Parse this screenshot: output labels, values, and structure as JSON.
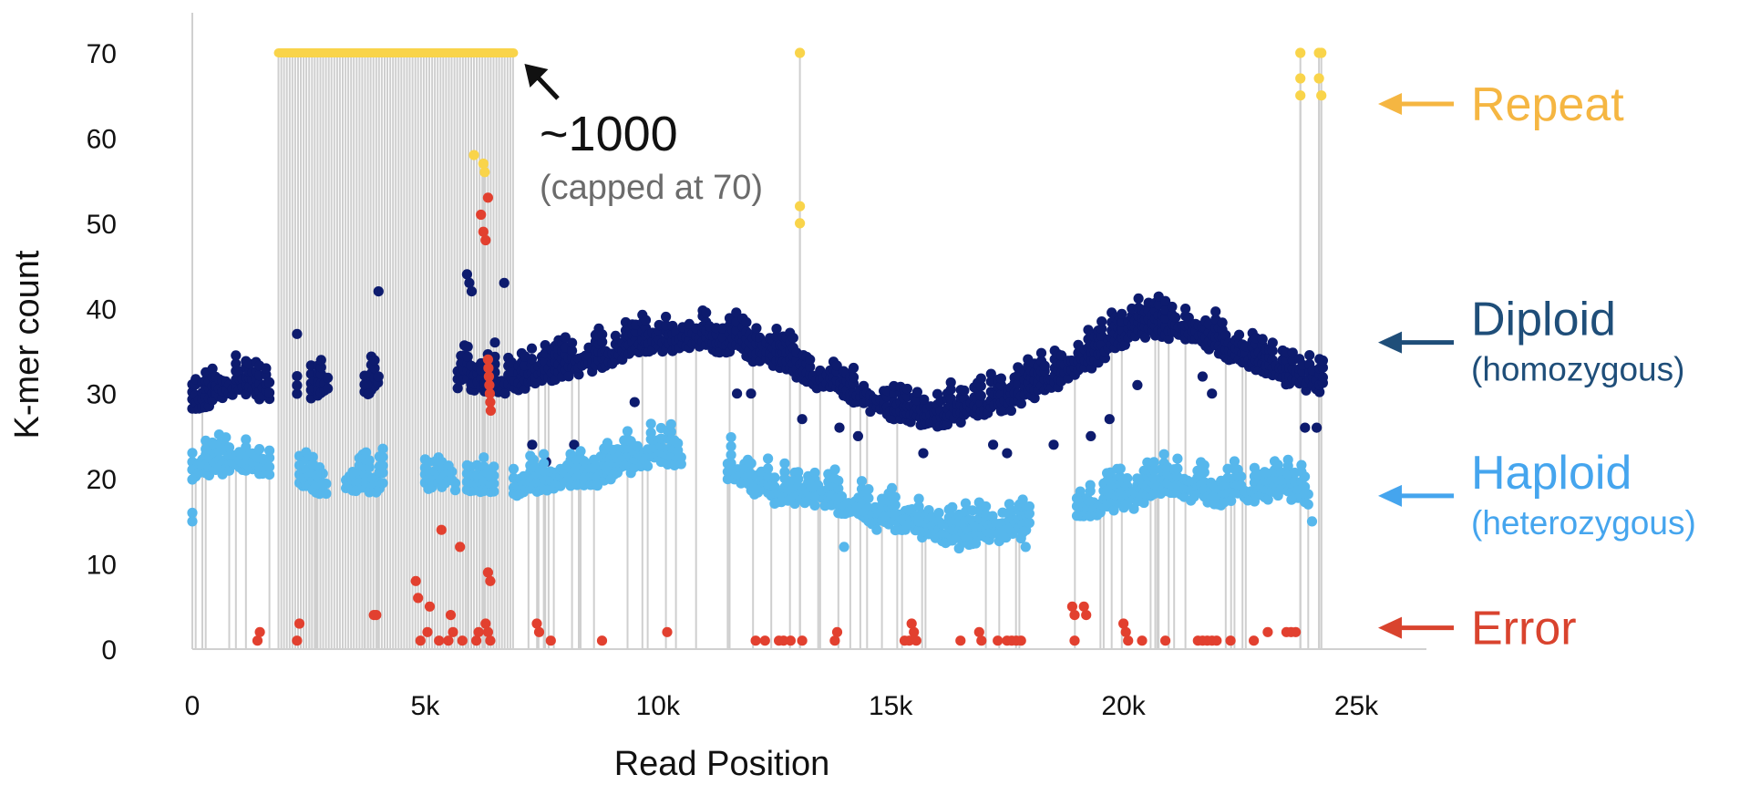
{
  "chart_data": {
    "type": "scatter",
    "title": "",
    "xlabel": "Read Position",
    "ylabel": "K-mer count",
    "xlim": [
      0,
      25000
    ],
    "ylim": [
      0,
      70
    ],
    "x_ticks": [
      0,
      5000,
      10000,
      15000,
      20000,
      25000
    ],
    "x_tick_labels": [
      "0",
      "5k",
      "10k",
      "15k",
      "20k",
      "25k"
    ],
    "y_ticks": [
      0,
      10,
      20,
      30,
      40,
      50,
      60,
      70
    ],
    "y_tick_labels": [
      "0",
      "10",
      "20",
      "30",
      "40",
      "50",
      "60",
      "70"
    ],
    "grid": false,
    "cap_value": 70,
    "colors": {
      "repeat": "#F9D44A",
      "diploid": "#0D1B6E",
      "haploid": "#56B7EC",
      "error": "#E2402F",
      "connector": "#CFCFCF",
      "axis": "#D0D0D0"
    },
    "annotation": {
      "main": "~1000",
      "sub": "(capped at 70)",
      "target": [
        6900,
        70
      ]
    },
    "legend": [
      {
        "key": "repeat",
        "label": "Repeat",
        "sublabel": "",
        "y": 64,
        "label_color": "#F5B642",
        "arrow_color": "#F5B642"
      },
      {
        "key": "diploid",
        "label": "Diploid",
        "sublabel": "(homozygous)",
        "y": 36,
        "label_color": "#1F4E79",
        "arrow_color": "#1F4E79"
      },
      {
        "key": "haploid",
        "label": "Haploid",
        "sublabel": "(heterozygous)",
        "y": 18,
        "label_color": "#45A5EE",
        "arrow_color": "#45A5EE"
      },
      {
        "key": "error",
        "label": "Error",
        "sublabel": "",
        "y": 2.5,
        "label_color": "#D9432E",
        "arrow_color": "#D9432E"
      }
    ],
    "series": [
      {
        "name": "Repeat",
        "key": "repeat",
        "segments": [
          {
            "x_start": 1850,
            "x_end": 6900,
            "y": 70
          }
        ],
        "points": [
          [
            6050,
            58
          ],
          [
            6250,
            57
          ],
          [
            6280,
            56
          ],
          [
            13050,
            70
          ],
          [
            13050,
            52
          ],
          [
            13050,
            50
          ],
          [
            23800,
            70
          ],
          [
            23800,
            67
          ],
          [
            23800,
            65
          ],
          [
            24200,
            70
          ],
          [
            24250,
            70
          ],
          [
            24200,
            67
          ],
          [
            24250,
            65
          ]
        ]
      },
      {
        "name": "Diploid",
        "key": "diploid",
        "base_curve": [
          [
            0,
            30
          ],
          [
            500,
            31
          ],
          [
            1000,
            32
          ],
          [
            1700,
            31
          ],
          [
            5000,
            33
          ],
          [
            6800,
            32
          ],
          [
            8000,
            34
          ],
          [
            10000,
            37
          ],
          [
            11500,
            37
          ],
          [
            13000,
            34
          ],
          [
            15000,
            29
          ],
          [
            16000,
            28
          ],
          [
            17500,
            30
          ],
          [
            19000,
            34
          ],
          [
            20500,
            39
          ],
          [
            21500,
            38
          ],
          [
            23000,
            34
          ],
          [
            24300,
            32
          ]
        ],
        "ranges": [
          [
            0,
            1700
          ],
          [
            2250,
            2300
          ],
          [
            2550,
            2950
          ],
          [
            3700,
            4050
          ],
          [
            5700,
            6500
          ],
          [
            6500,
            24300
          ]
        ],
        "outliers": [
          [
            2250,
            37
          ],
          [
            3750,
            31
          ],
          [
            3800,
            30
          ],
          [
            4000,
            42
          ],
          [
            4000,
            32
          ],
          [
            5900,
            44
          ],
          [
            5950,
            43
          ],
          [
            6000,
            42
          ],
          [
            6700,
            43
          ],
          [
            6500,
            36
          ],
          [
            7300,
            24
          ],
          [
            7400,
            20
          ],
          [
            7600,
            22
          ],
          [
            8200,
            24
          ],
          [
            9500,
            29
          ],
          [
            11700,
            30
          ],
          [
            12000,
            30
          ],
          [
            13100,
            27
          ],
          [
            13900,
            26
          ],
          [
            14300,
            25
          ],
          [
            15700,
            23
          ],
          [
            17200,
            24
          ],
          [
            17500,
            23
          ],
          [
            18500,
            24
          ],
          [
            19300,
            25
          ],
          [
            19700,
            27
          ],
          [
            20300,
            31
          ],
          [
            21700,
            32
          ],
          [
            21900,
            30
          ],
          [
            23900,
            26
          ],
          [
            24150,
            26
          ]
        ]
      },
      {
        "name": "Haploid",
        "key": "haploid",
        "base_curve": [
          [
            0,
            22
          ],
          [
            1000,
            23
          ],
          [
            1700,
            22
          ],
          [
            3000,
            20
          ],
          [
            5000,
            21
          ],
          [
            7000,
            20
          ],
          [
            8500,
            21
          ],
          [
            10000,
            24
          ],
          [
            11500,
            22
          ],
          [
            12500,
            19
          ],
          [
            13500,
            19
          ],
          [
            15000,
            16
          ],
          [
            16500,
            14
          ],
          [
            17500,
            15
          ],
          [
            18500,
            17
          ],
          [
            19800,
            18
          ],
          [
            21000,
            20
          ],
          [
            22000,
            19
          ],
          [
            23500,
            20
          ],
          [
            24000,
            19
          ]
        ],
        "ranges": [
          [
            0,
            1700
          ],
          [
            2300,
            2900
          ],
          [
            3300,
            4100
          ],
          [
            5000,
            5700
          ],
          [
            5900,
            6500
          ],
          [
            6900,
            10500
          ],
          [
            11500,
            18000
          ],
          [
            19000,
            24000
          ]
        ],
        "outliers": [
          [
            0,
            16
          ],
          [
            0,
            15
          ],
          [
            14000,
            12
          ],
          [
            14700,
            14
          ],
          [
            15600,
            15
          ],
          [
            17800,
            13
          ],
          [
            17900,
            12
          ],
          [
            24050,
            15
          ]
        ]
      },
      {
        "name": "Error",
        "key": "error",
        "points": [
          [
            1400,
            1
          ],
          [
            1450,
            2
          ],
          [
            2250,
            1
          ],
          [
            2300,
            3
          ],
          [
            3900,
            4
          ],
          [
            3950,
            4
          ],
          [
            4800,
            8
          ],
          [
            4850,
            6
          ],
          [
            4900,
            1
          ],
          [
            5050,
            2
          ],
          [
            5100,
            5
          ],
          [
            5300,
            1
          ],
          [
            5350,
            14
          ],
          [
            5500,
            1
          ],
          [
            5550,
            4
          ],
          [
            5600,
            2
          ],
          [
            5750,
            12
          ],
          [
            5800,
            1
          ],
          [
            6100,
            1
          ],
          [
            6150,
            2
          ],
          [
            6200,
            51
          ],
          [
            6250,
            49
          ],
          [
            6300,
            48
          ],
          [
            6350,
            53
          ],
          [
            6300,
            3
          ],
          [
            6350,
            2
          ],
          [
            6350,
            9
          ],
          [
            6400,
            8
          ],
          [
            6400,
            1
          ],
          [
            6350,
            34
          ],
          [
            6360,
            33
          ],
          [
            6370,
            32
          ],
          [
            6380,
            31
          ],
          [
            6390,
            30
          ],
          [
            6400,
            29
          ],
          [
            6410,
            28
          ],
          [
            7400,
            3
          ],
          [
            7450,
            2
          ],
          [
            7700,
            1
          ],
          [
            8800,
            1
          ],
          [
            10200,
            2
          ],
          [
            12100,
            1
          ],
          [
            12300,
            1
          ],
          [
            12600,
            1
          ],
          [
            12700,
            1
          ],
          [
            12850,
            1
          ],
          [
            13100,
            1
          ],
          [
            13800,
            1
          ],
          [
            13850,
            2
          ],
          [
            15300,
            1
          ],
          [
            15400,
            1
          ],
          [
            15450,
            3
          ],
          [
            15500,
            2
          ],
          [
            15550,
            1
          ],
          [
            16500,
            1
          ],
          [
            16900,
            2
          ],
          [
            16950,
            1
          ],
          [
            17300,
            1
          ],
          [
            17500,
            1
          ],
          [
            17600,
            1
          ],
          [
            17700,
            1
          ],
          [
            17800,
            1
          ],
          [
            18900,
            5
          ],
          [
            18950,
            4
          ],
          [
            18950,
            1
          ],
          [
            19150,
            5
          ],
          [
            19200,
            4
          ],
          [
            20000,
            3
          ],
          [
            20050,
            2
          ],
          [
            20100,
            1
          ],
          [
            20400,
            1
          ],
          [
            20900,
            1
          ],
          [
            21600,
            1
          ],
          [
            21700,
            1
          ],
          [
            21800,
            1
          ],
          [
            21900,
            1
          ],
          [
            22000,
            1
          ],
          [
            22300,
            1
          ],
          [
            22800,
            1
          ],
          [
            23100,
            2
          ],
          [
            23500,
            2
          ],
          [
            23600,
            2
          ],
          [
            23700,
            2
          ]
        ]
      }
    ]
  }
}
